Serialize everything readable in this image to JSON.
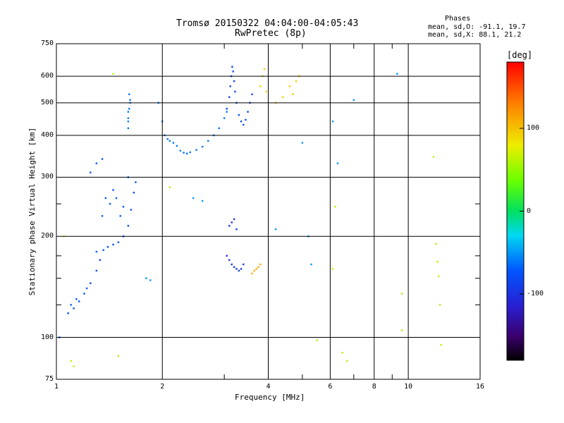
{
  "header": {
    "title_line1": "Tromsø 20150322 04:04:00-04:05:43",
    "title_line2": "RwPretec (8p)"
  },
  "phases_box": {
    "title": "Phases",
    "line_o": "mean, sd,O: -91.1, 19.7",
    "line_x": "mean, sd,X: 88.1, 21.2"
  },
  "colorbar": {
    "unit": "[deg]",
    "range": [
      -180,
      180
    ],
    "ticks": [
      {
        "value": 100,
        "label": "100"
      },
      {
        "value": 0,
        "label": "0"
      },
      {
        "value": -100,
        "label": "-100"
      }
    ]
  },
  "chart_data": {
    "type": "scatter",
    "xlabel": "Frequency [MHz]",
    "ylabel": "Stationary phase Virtual Height [km]",
    "xscale": "log",
    "yscale": "log",
    "xlim": [
      1,
      16
    ],
    "ylim": [
      75,
      750
    ],
    "x_ticks": [
      1,
      2,
      4,
      6,
      8,
      10,
      16
    ],
    "x_tick_labels": [
      "1",
      "2",
      "4",
      "6",
      "8",
      "10",
      "16"
    ],
    "x_minor": [
      3,
      5,
      7,
      9
    ],
    "y_ticks": [
      75,
      100,
      200,
      300,
      400,
      500,
      600,
      750
    ],
    "y_tick_labels": [
      "75",
      "100",
      "200",
      "300",
      "400",
      "500",
      "600",
      "750"
    ],
    "y_minor": [
      125,
      150,
      175,
      250
    ],
    "grid": true,
    "clusters": [
      {
        "name": "low_curve",
        "color_deg": -85,
        "points": [
          [
            1.08,
            118
          ],
          [
            1.12,
            122
          ],
          [
            1.16,
            128
          ],
          [
            1.2,
            135
          ],
          [
            1.25,
            145
          ],
          [
            1.3,
            158
          ],
          [
            1.33,
            170
          ],
          [
            1.36,
            182
          ],
          [
            1.4,
            186
          ],
          [
            1.45,
            189
          ],
          [
            1.5,
            192
          ],
          [
            1.55,
            200
          ],
          [
            1.6,
            215
          ],
          [
            1.63,
            240
          ],
          [
            1.66,
            270
          ],
          [
            1.68,
            290
          ]
        ]
      },
      {
        "name": "low_scatter",
        "color_deg": -80,
        "points": [
          [
            1.02,
            100
          ],
          [
            1.1,
            125
          ],
          [
            1.14,
            130
          ],
          [
            1.22,
            140
          ],
          [
            1.3,
            180
          ],
          [
            1.35,
            230
          ],
          [
            1.38,
            260
          ],
          [
            1.42,
            250
          ],
          [
            1.45,
            275
          ],
          [
            1.48,
            260
          ],
          [
            1.52,
            230
          ],
          [
            1.55,
            245
          ],
          [
            1.3,
            330
          ],
          [
            1.35,
            340
          ],
          [
            1.25,
            310
          ],
          [
            1.6,
            300
          ]
        ]
      },
      {
        "name": "tall_column_1.6",
        "color_deg": -70,
        "points": [
          [
            1.6,
            420
          ],
          [
            1.6,
            450
          ],
          [
            1.61,
            480
          ],
          [
            1.62,
            500
          ],
          [
            1.61,
            530
          ],
          [
            1.6,
            470
          ],
          [
            1.6,
            440
          ],
          [
            1.62,
            510
          ]
        ]
      },
      {
        "name": "F_trace_lower",
        "color_deg": -70,
        "points": [
          [
            1.95,
            500
          ],
          [
            2.0,
            440
          ],
          [
            2.03,
            400
          ],
          [
            2.07,
            390
          ],
          [
            2.1,
            385
          ],
          [
            2.15,
            380
          ],
          [
            2.2,
            372
          ],
          [
            2.25,
            360
          ],
          [
            2.3,
            355
          ],
          [
            2.35,
            353
          ],
          [
            2.4,
            356
          ],
          [
            2.5,
            362
          ],
          [
            2.6,
            370
          ],
          [
            2.7,
            385
          ],
          [
            2.8,
            400
          ],
          [
            2.9,
            420
          ],
          [
            3.0,
            450
          ],
          [
            3.05,
            470
          ]
        ]
      },
      {
        "name": "F_spread_3.1",
        "color_deg": -90,
        "points": [
          [
            3.05,
            480
          ],
          [
            3.1,
            520
          ],
          [
            3.12,
            560
          ],
          [
            3.14,
            600
          ],
          [
            3.16,
            640
          ],
          [
            3.18,
            620
          ],
          [
            3.2,
            580
          ],
          [
            3.22,
            540
          ],
          [
            3.25,
            500
          ],
          [
            3.3,
            460
          ],
          [
            3.35,
            440
          ],
          [
            3.4,
            430
          ],
          [
            3.45,
            445
          ],
          [
            3.5,
            470
          ],
          [
            3.55,
            500
          ],
          [
            3.6,
            530
          ]
        ]
      },
      {
        "name": "F_X",
        "color_deg": 95,
        "points": [
          [
            3.8,
            560
          ],
          [
            3.85,
            600
          ],
          [
            3.9,
            630
          ],
          [
            3.95,
            540
          ],
          [
            4.2,
            500
          ],
          [
            4.4,
            520
          ],
          [
            4.6,
            560
          ],
          [
            4.8,
            580
          ],
          [
            4.9,
            600
          ],
          [
            4.7,
            530
          ]
        ]
      },
      {
        "name": "E_region",
        "color_deg": -100,
        "points": [
          [
            3.05,
            175
          ],
          [
            3.1,
            170
          ],
          [
            3.15,
            165
          ],
          [
            3.2,
            162
          ],
          [
            3.25,
            160
          ],
          [
            3.3,
            158
          ],
          [
            3.35,
            160
          ],
          [
            3.4,
            165
          ],
          [
            3.1,
            215
          ],
          [
            3.15,
            220
          ],
          [
            3.2,
            225
          ],
          [
            3.25,
            210
          ]
        ]
      },
      {
        "name": "E_X",
        "color_deg": 110,
        "points": [
          [
            3.6,
            155
          ],
          [
            3.65,
            158
          ],
          [
            3.7,
            160
          ],
          [
            3.75,
            162
          ],
          [
            3.8,
            165
          ]
        ]
      },
      {
        "name": "sporadic",
        "color_deg": -60,
        "points": [
          [
            1.85,
            148
          ],
          [
            1.8,
            150
          ],
          [
            2.45,
            260
          ],
          [
            2.6,
            255
          ],
          [
            4.2,
            210
          ],
          [
            5.2,
            200
          ],
          [
            5.3,
            165
          ],
          [
            6.3,
            330
          ],
          [
            7.0,
            510
          ],
          [
            9.3,
            610
          ],
          [
            6.1,
            440
          ],
          [
            5.0,
            380
          ]
        ]
      },
      {
        "name": "sporadic_warm",
        "color_deg": 60,
        "points": [
          [
            1.05,
            200
          ],
          [
            1.1,
            85
          ],
          [
            1.12,
            82
          ],
          [
            1.5,
            88
          ],
          [
            1.45,
            610
          ],
          [
            2.1,
            280
          ],
          [
            5.5,
            98
          ],
          [
            6.1,
            160
          ],
          [
            6.2,
            245
          ],
          [
            6.5,
            90
          ],
          [
            6.7,
            85
          ],
          [
            9.6,
            135
          ],
          [
            9.6,
            105
          ],
          [
            11.8,
            345
          ],
          [
            12.0,
            190
          ],
          [
            12.1,
            168
          ],
          [
            12.2,
            152
          ],
          [
            12.3,
            125
          ],
          [
            12.4,
            95
          ]
        ]
      }
    ]
  }
}
